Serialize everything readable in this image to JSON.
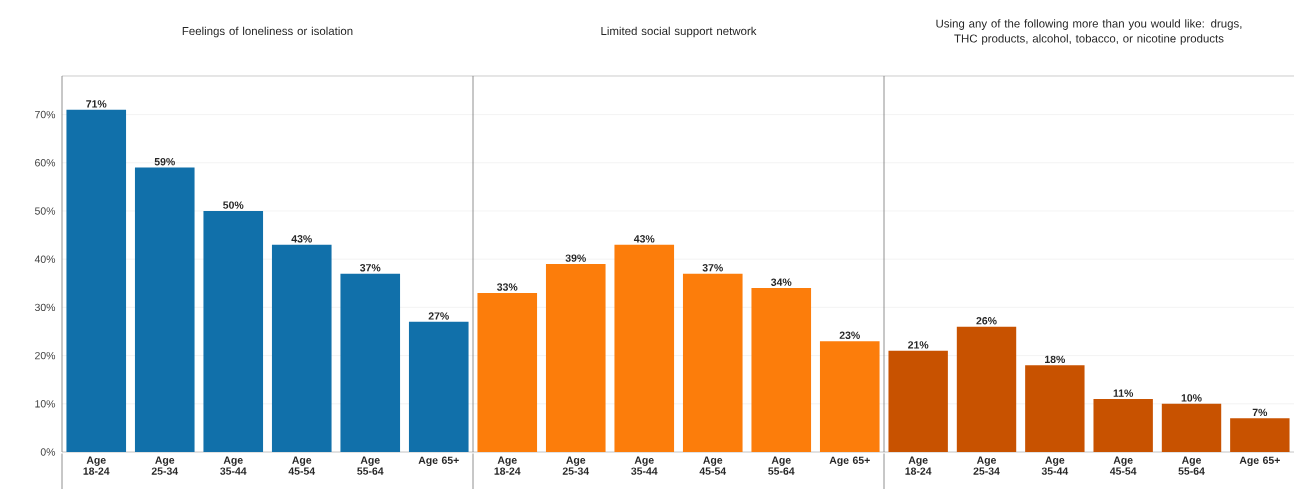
{
  "chart_data": [
    {
      "type": "bar",
      "title": "Feelings of loneliness or isolation",
      "categories": [
        "Age 18-24",
        "Age 25-34",
        "Age 35-44",
        "Age 45-54",
        "Age 55-64",
        "Age 65+"
      ],
      "values": [
        71,
        59,
        50,
        43,
        37,
        27
      ],
      "value_labels": [
        "71%",
        "59%",
        "50%",
        "43%",
        "37%",
        "27%"
      ],
      "color": "#1170aa",
      "ylim": [
        0,
        78
      ],
      "yticks": [
        {
          "value": 0,
          "label": "0%"
        },
        {
          "value": 10,
          "label": "10%"
        },
        {
          "value": 20,
          "label": "20%"
        },
        {
          "value": 30,
          "label": "30%"
        },
        {
          "value": 40,
          "label": "40%"
        },
        {
          "value": 50,
          "label": "50%"
        },
        {
          "value": 60,
          "label": "60%"
        },
        {
          "value": 70,
          "label": "70%"
        }
      ],
      "grid": "y"
    },
    {
      "type": "bar",
      "title": "Limited social support network",
      "categories": [
        "Age 18-24",
        "Age 25-34",
        "Age 35-44",
        "Age 45-54",
        "Age 55-64",
        "Age 65+"
      ],
      "values": [
        33,
        39,
        43,
        37,
        34,
        23
      ],
      "value_labels": [
        "33%",
        "39%",
        "43%",
        "37%",
        "34%",
        "23%"
      ],
      "color": "#fc7d0b",
      "ylim": [
        0,
        78
      ],
      "yticks": [
        {
          "value": 0,
          "label": null
        },
        {
          "value": 10,
          "label": null
        },
        {
          "value": 20,
          "label": null
        },
        {
          "value": 30,
          "label": null
        },
        {
          "value": 40,
          "label": null
        },
        {
          "value": 50,
          "label": null
        },
        {
          "value": 60,
          "label": null
        },
        {
          "value": 70,
          "label": null
        }
      ],
      "grid": "y",
      "tick_labels": "x"
    },
    {
      "type": "bar",
      "title": "Using any of the following more than you would like: drugs, THC products, alcohol, tobacco, or nicotine products",
      "categories": [
        "Age 18-24",
        "Age 25-34",
        "Age 35-44",
        "Age 45-54",
        "Age 55-64",
        "Age 65+"
      ],
      "values": [
        21,
        26,
        18,
        11,
        10,
        7
      ],
      "value_labels": [
        "21%",
        "26%",
        "18%",
        "11%",
        "10%",
        "7%"
      ],
      "color": "#c85200",
      "ylim": [
        0,
        78
      ],
      "yticks": [
        {
          "value": 0,
          "label": null
        },
        {
          "value": 10,
          "label": null
        },
        {
          "value": 20,
          "label": null
        },
        {
          "value": 30,
          "label": null
        },
        {
          "value": 40,
          "label": null
        },
        {
          "value": 50,
          "label": null
        },
        {
          "value": 60,
          "label": null
        },
        {
          "value": 70,
          "label": null
        }
      ],
      "grid": "y",
      "tick_labels": "x"
    }
  ]
}
